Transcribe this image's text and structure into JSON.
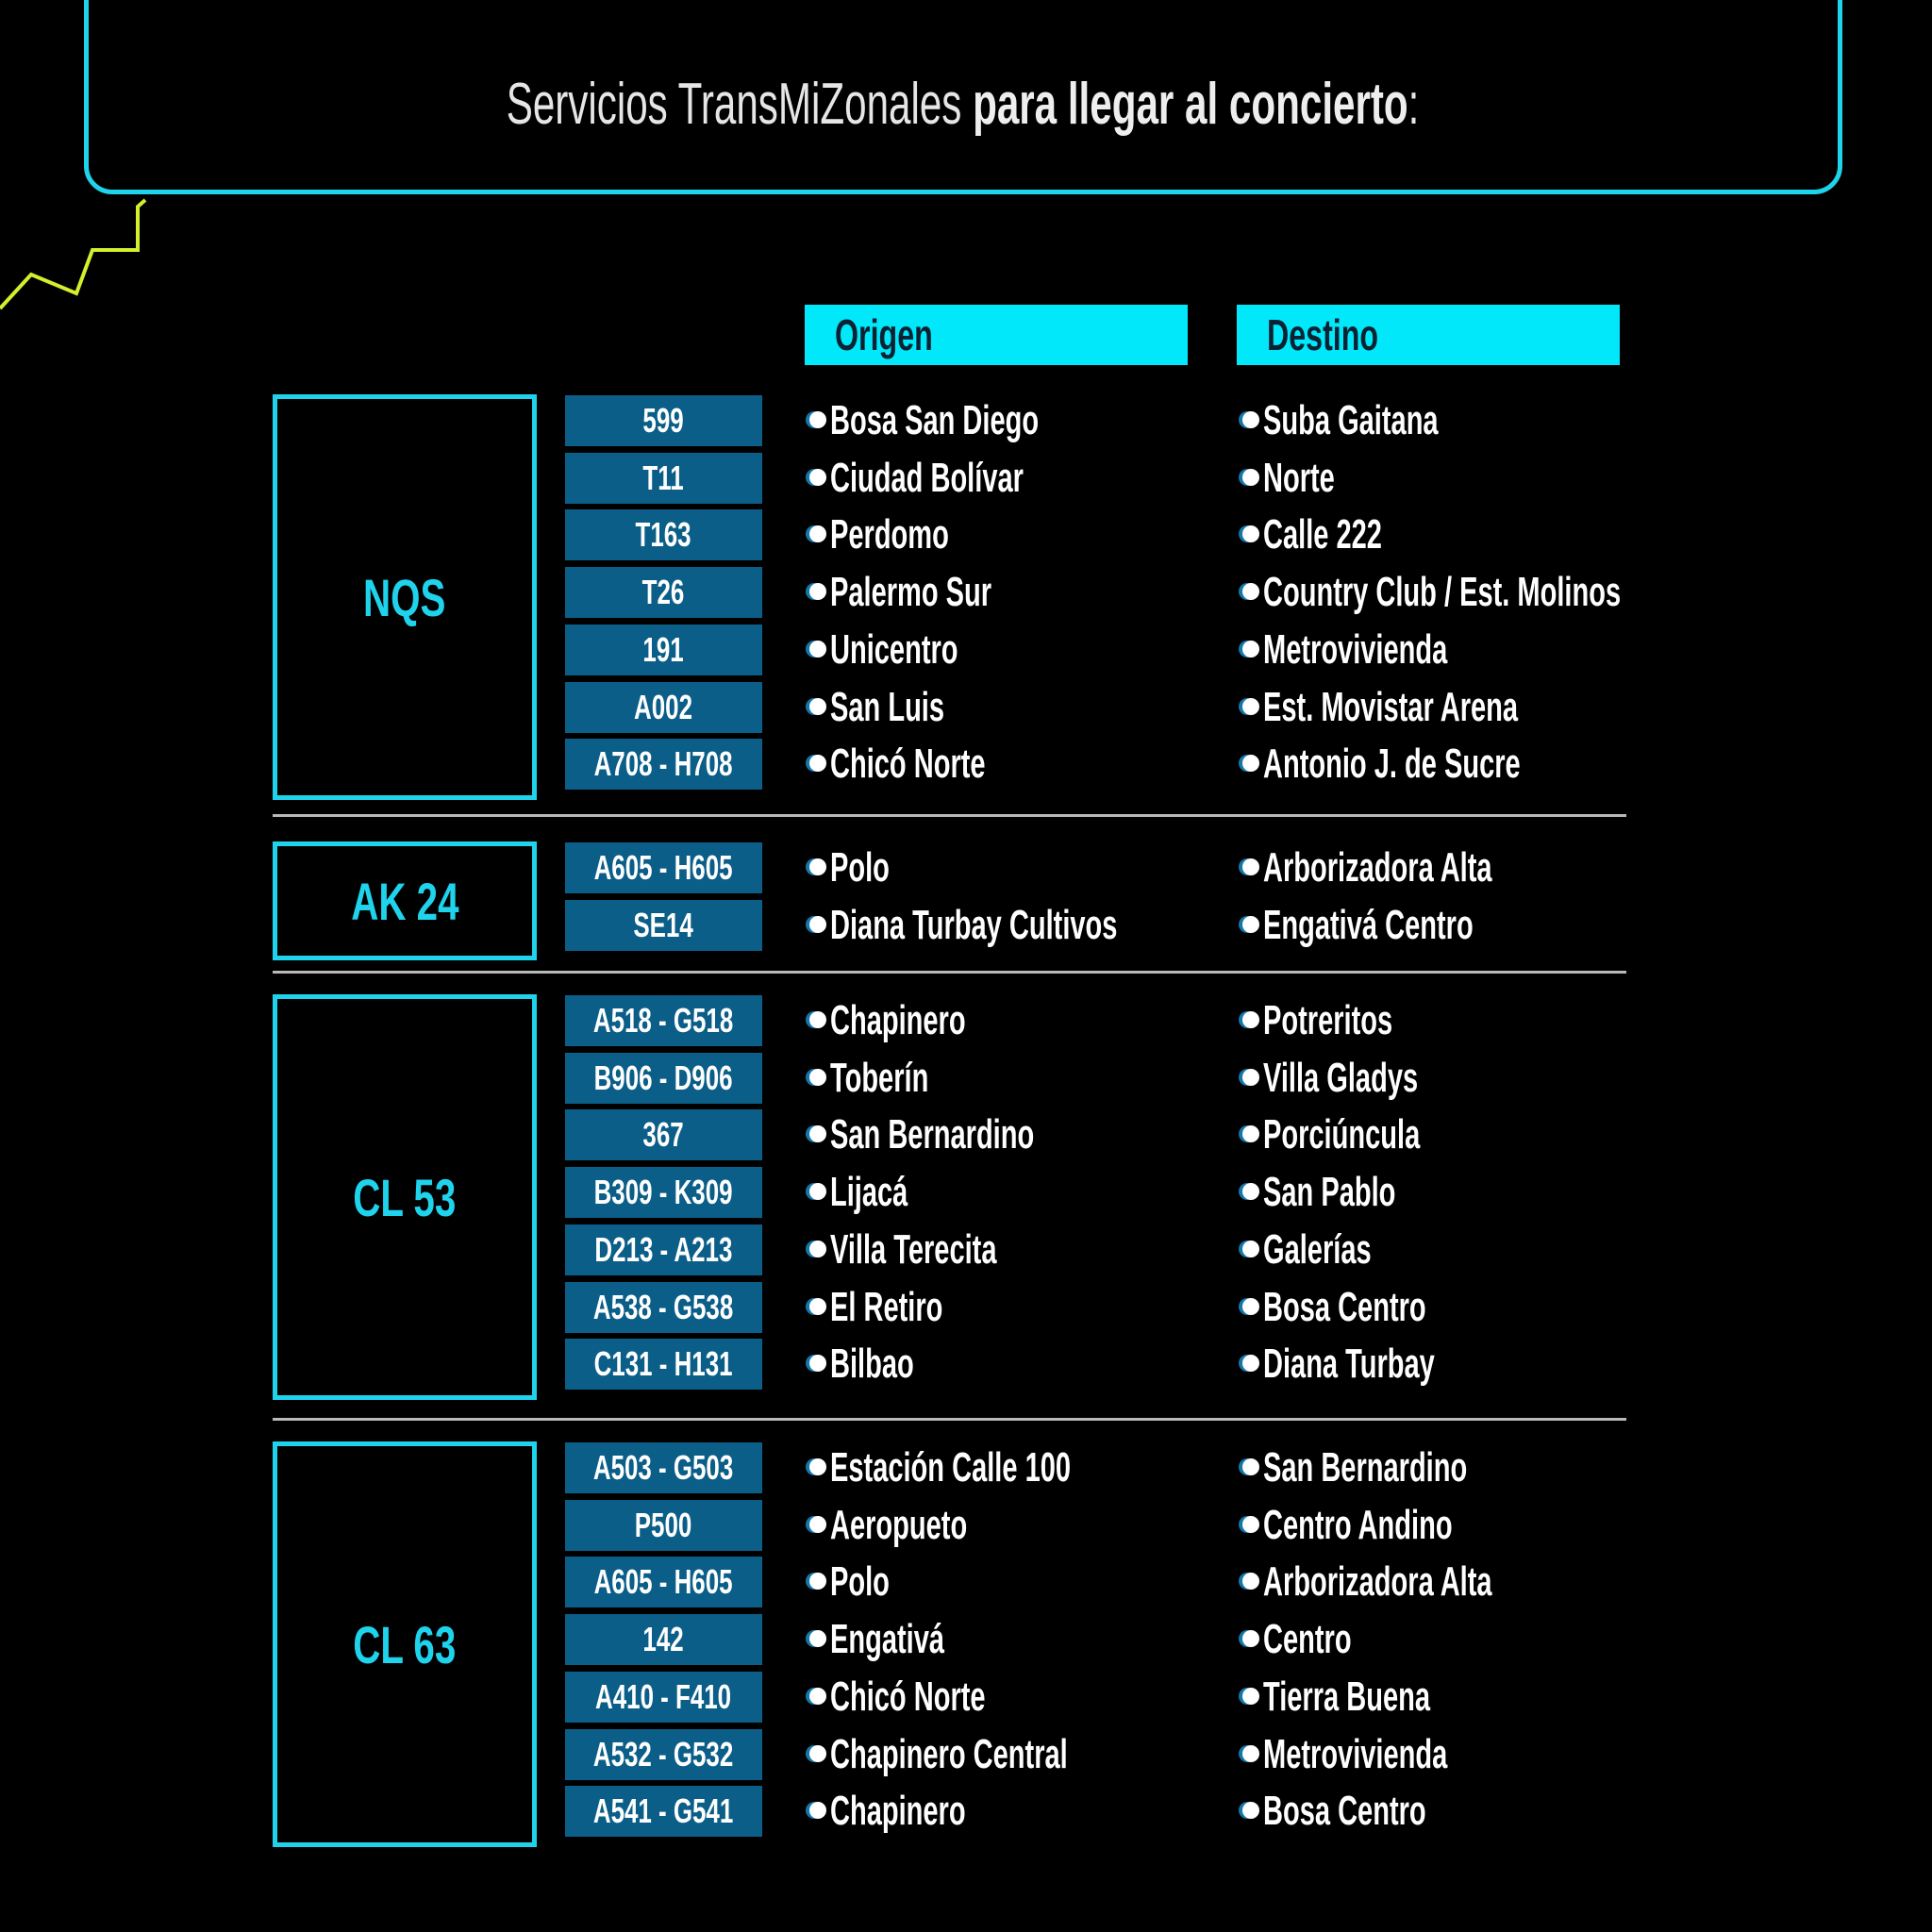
{
  "title": {
    "regular": "Servicios TransMiZonales ",
    "bold": "para llegar al concierto",
    "suffix": ":"
  },
  "columns": {
    "origin": "Origen",
    "destination": "Destino"
  },
  "colors": {
    "accent": "#1fd3ec",
    "header_bg": "#00e8fa",
    "badge_bg": "#0b5e88",
    "bolt": "#d4ef2c"
  },
  "groups": [
    {
      "label": "NQS",
      "routes": [
        {
          "code": "599",
          "origin": "Bosa San Diego",
          "destination": "Suba Gaitana"
        },
        {
          "code": "T11",
          "origin": "Ciudad Bolívar",
          "destination": "Norte"
        },
        {
          "code": "T163",
          "origin": "Perdomo",
          "destination": "Calle 222"
        },
        {
          "code": "T26",
          "origin": "Palermo Sur",
          "destination": "Country Club / Est. Molinos"
        },
        {
          "code": "191",
          "origin": "Unicentro",
          "destination": "Metrovivienda"
        },
        {
          "code": "A002",
          "origin": "San Luis",
          "destination": "Est. Movistar Arena"
        },
        {
          "code": "A708 - H708",
          "origin": "Chicó Norte",
          "destination": "Antonio J. de Sucre"
        }
      ]
    },
    {
      "label": "AK 24",
      "routes": [
        {
          "code": "A605 - H605",
          "origin": "Polo",
          "destination": "Arborizadora Alta"
        },
        {
          "code": "SE14",
          "origin": "Diana Turbay Cultivos",
          "destination": "Engativá Centro"
        }
      ]
    },
    {
      "label": "CL 53",
      "routes": [
        {
          "code": "A518 - G518",
          "origin": "Chapinero",
          "destination": "Potreritos"
        },
        {
          "code": "B906 - D906",
          "origin": "Toberín",
          "destination": "Villa Gladys"
        },
        {
          "code": "367",
          "origin": "San Bernardino",
          "destination": "Porciúncula"
        },
        {
          "code": "B309 - K309",
          "origin": "Lijacá",
          "destination": "San Pablo"
        },
        {
          "code": "D213 - A213",
          "origin": "Villa Terecita",
          "destination": "Galerías"
        },
        {
          "code": "A538 - G538",
          "origin": "El Retiro",
          "destination": "Bosa Centro"
        },
        {
          "code": "C131 - H131",
          "origin": "Bilbao",
          "destination": "Diana Turbay"
        }
      ]
    },
    {
      "label": "CL 63",
      "routes": [
        {
          "code": "A503 - G503",
          "origin": "Estación Calle 100",
          "destination": "San Bernardino"
        },
        {
          "code": "P500",
          "origin": "Aeropueto",
          "destination": "Centro Andino"
        },
        {
          "code": "A605 - H605",
          "origin": "Polo",
          "destination": "Arborizadora Alta"
        },
        {
          "code": "142",
          "origin": "Engativá",
          "destination": "Centro"
        },
        {
          "code": "A410 - F410",
          "origin": "Chicó Norte",
          "destination": "Tierra Buena"
        },
        {
          "code": "A532 - G532",
          "origin": "Chapinero Central",
          "destination": "Metrovivienda"
        },
        {
          "code": "A541 - G541",
          "origin": "Chapinero",
          "destination": "Bosa Centro"
        }
      ]
    }
  ]
}
